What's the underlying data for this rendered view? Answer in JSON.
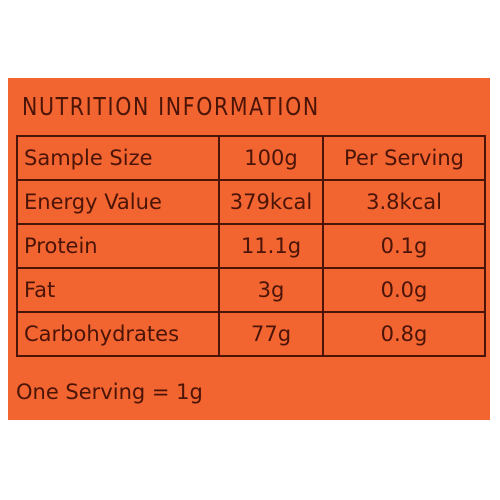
{
  "header": {
    "title": "NUTRITION INFORMATION"
  },
  "table": {
    "rows": [
      [
        "Sample Size",
        "100g",
        "Per Serving"
      ],
      [
        "Energy Value",
        "379kcal",
        "3.8kcal"
      ],
      [
        "Protein",
        "11.1g",
        "0.1g"
      ],
      [
        "Fat",
        "3g",
        "0.0g"
      ],
      [
        "Carbohydrates",
        "77g",
        "0.8g"
      ]
    ]
  },
  "footer": {
    "note": "One Serving = 1g"
  }
}
